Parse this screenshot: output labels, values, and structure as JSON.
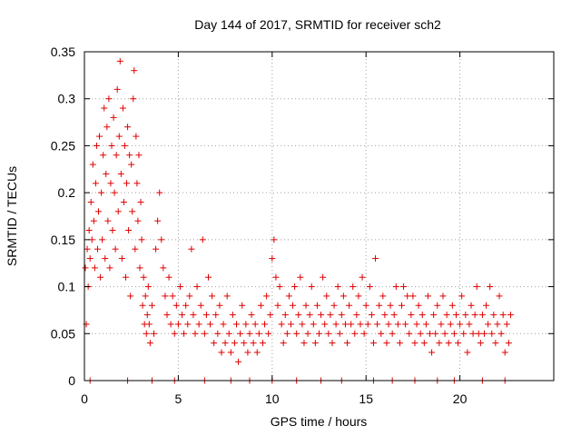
{
  "chart_data": {
    "type": "scatter",
    "title": "Day 144 of 2017, SRMTID for receiver sch2",
    "xlabel": "GPS time / hours",
    "ylabel": "SRMTID / TECUs",
    "xlim": [
      0,
      25
    ],
    "ylim": [
      0,
      0.35
    ],
    "xticks": [
      0,
      5,
      10,
      15,
      20
    ],
    "xtick_labels": [
      "0",
      "5",
      "10",
      "15",
      "20"
    ],
    "yticks": [
      0,
      0.05,
      0.1,
      0.15,
      0.2,
      0.25,
      0.3,
      0.35
    ],
    "ytick_labels": [
      "0",
      "0.05",
      "0.1",
      "0.15",
      "0.2",
      "0.25",
      "0.3",
      "0.35"
    ],
    "grid": true,
    "marker": "+",
    "color": "#e00000",
    "series": [
      {
        "name": "SRMTID",
        "points": [
          [
            0.05,
            0.12
          ],
          [
            0.1,
            0.06
          ],
          [
            0.15,
            0.14
          ],
          [
            0.2,
            0.1
          ],
          [
            0.25,
            0.16
          ],
          [
            0.3,
            0.13
          ],
          [
            0.35,
            0.19
          ],
          [
            0.4,
            0.15
          ],
          [
            0.45,
            0.23
          ],
          [
            0.5,
            0.17
          ],
          [
            0.55,
            0.12
          ],
          [
            0.6,
            0.21
          ],
          [
            0.65,
            0.25
          ],
          [
            0.7,
            0.14
          ],
          [
            0.75,
            0.18
          ],
          [
            0.8,
            0.26
          ],
          [
            0.85,
            0.11
          ],
          [
            0.9,
            0.2
          ],
          [
            0.95,
            0.15
          ],
          [
            1.0,
            0.24
          ],
          [
            1.05,
            0.29
          ],
          [
            1.1,
            0.13
          ],
          [
            1.15,
            0.22
          ],
          [
            1.2,
            0.27
          ],
          [
            1.25,
            0.17
          ],
          [
            1.3,
            0.3
          ],
          [
            1.35,
            0.12
          ],
          [
            1.4,
            0.21
          ],
          [
            1.45,
            0.25
          ],
          [
            1.5,
            0.16
          ],
          [
            1.55,
            0.28
          ],
          [
            1.6,
            0.2
          ],
          [
            1.65,
            0.14
          ],
          [
            1.7,
            0.24
          ],
          [
            1.75,
            0.31
          ],
          [
            1.8,
            0.18
          ],
          [
            1.85,
            0.26
          ],
          [
            1.9,
            0.34
          ],
          [
            1.95,
            0.22
          ],
          [
            2.0,
            0.13
          ],
          [
            2.05,
            0.29
          ],
          [
            2.1,
            0.19
          ],
          [
            2.15,
            0.25
          ],
          [
            2.2,
            0.11
          ],
          [
            2.25,
            0.21
          ],
          [
            2.3,
            0.27
          ],
          [
            2.35,
            0.16
          ],
          [
            2.4,
            0.24
          ],
          [
            2.45,
            0.09
          ],
          [
            2.5,
            0.23
          ],
          [
            2.55,
            0.18
          ],
          [
            2.6,
            0.3
          ],
          [
            2.65,
            0.33
          ],
          [
            2.7,
            0.14
          ],
          [
            2.75,
            0.26
          ],
          [
            2.8,
            0.21
          ],
          [
            2.85,
            0.17
          ],
          [
            2.9,
            0.24
          ],
          [
            2.95,
            0.12
          ],
          [
            3.0,
            0.19
          ],
          [
            3.05,
            0.15
          ],
          [
            3.1,
            0.08
          ],
          [
            3.15,
            0.11
          ],
          [
            3.2,
            0.06
          ],
          [
            3.25,
            0.09
          ],
          [
            3.3,
            0.05
          ],
          [
            3.35,
            0.07
          ],
          [
            3.4,
            0.1
          ],
          [
            3.45,
            0.06
          ],
          [
            3.5,
            0.04
          ],
          [
            3.6,
            0.08
          ],
          [
            3.7,
            0.05
          ],
          [
            3.8,
            0.14
          ],
          [
            3.9,
            0.17
          ],
          [
            4.0,
            0.2
          ],
          [
            4.1,
            0.15
          ],
          [
            4.2,
            0.12
          ],
          [
            4.3,
            0.09
          ],
          [
            4.4,
            0.07
          ],
          [
            4.5,
            0.11
          ],
          [
            4.6,
            0.06
          ],
          [
            4.7,
            0.09
          ],
          [
            4.8,
            0.05
          ],
          [
            4.9,
            0.08
          ],
          [
            5.0,
            0.06
          ],
          [
            5.1,
            0.1
          ],
          [
            5.2,
            0.07
          ],
          [
            5.3,
            0.05
          ],
          [
            5.4,
            0.08
          ],
          [
            5.5,
            0.06
          ],
          [
            5.6,
            0.09
          ],
          [
            5.7,
            0.14
          ],
          [
            5.8,
            0.07
          ],
          [
            5.9,
            0.05
          ],
          [
            6.0,
            0.1
          ],
          [
            6.1,
            0.06
          ],
          [
            6.2,
            0.08
          ],
          [
            6.3,
            0.15
          ],
          [
            6.4,
            0.05
          ],
          [
            6.5,
            0.07
          ],
          [
            6.6,
            0.11
          ],
          [
            6.7,
            0.06
          ],
          [
            6.8,
            0.09
          ],
          [
            6.9,
            0.04
          ],
          [
            7.0,
            0.07
          ],
          [
            7.1,
            0.05
          ],
          [
            7.2,
            0.08
          ],
          [
            7.3,
            0.03
          ],
          [
            7.4,
            0.06
          ],
          [
            7.5,
            0.04
          ],
          [
            7.6,
            0.09
          ],
          [
            7.7,
            0.05
          ],
          [
            7.8,
            0.03
          ],
          [
            7.9,
            0.07
          ],
          [
            8.0,
            0.04
          ],
          [
            8.1,
            0.06
          ],
          [
            8.2,
            0.02
          ],
          [
            8.3,
            0.05
          ],
          [
            8.4,
            0.08
          ],
          [
            8.5,
            0.04
          ],
          [
            8.6,
            0.06
          ],
          [
            8.7,
            0.03
          ],
          [
            8.8,
            0.05
          ],
          [
            8.9,
            0.07
          ],
          [
            9.0,
            0.04
          ],
          [
            9.1,
            0.06
          ],
          [
            9.2,
            0.03
          ],
          [
            9.3,
            0.05
          ],
          [
            9.4,
            0.08
          ],
          [
            9.5,
            0.04
          ],
          [
            9.6,
            0.06
          ],
          [
            9.7,
            0.09
          ],
          [
            9.8,
            0.05
          ],
          [
            9.9,
            0.07
          ],
          [
            10.0,
            0.13
          ],
          [
            10.1,
            0.15
          ],
          [
            10.2,
            0.11
          ],
          [
            10.3,
            0.08
          ],
          [
            10.4,
            0.1
          ],
          [
            10.5,
            0.06
          ],
          [
            10.6,
            0.04
          ],
          [
            10.7,
            0.07
          ],
          [
            10.8,
            0.05
          ],
          [
            10.9,
            0.09
          ],
          [
            11.0,
            0.06
          ],
          [
            11.1,
            0.08
          ],
          [
            11.2,
            0.1
          ],
          [
            11.3,
            0.05
          ],
          [
            11.4,
            0.07
          ],
          [
            11.5,
            0.11
          ],
          [
            11.6,
            0.06
          ],
          [
            11.7,
            0.04
          ],
          [
            11.8,
            0.08
          ],
          [
            11.9,
            0.05
          ],
          [
            12.0,
            0.07
          ],
          [
            12.1,
            0.1
          ],
          [
            12.2,
            0.06
          ],
          [
            12.3,
            0.04
          ],
          [
            12.4,
            0.08
          ],
          [
            12.5,
            0.05
          ],
          [
            12.6,
            0.07
          ],
          [
            12.7,
            0.11
          ],
          [
            12.8,
            0.06
          ],
          [
            12.9,
            0.09
          ],
          [
            13.0,
            0.05
          ],
          [
            13.1,
            0.07
          ],
          [
            13.2,
            0.04
          ],
          [
            13.3,
            0.08
          ],
          [
            13.4,
            0.06
          ],
          [
            13.5,
            0.1
          ],
          [
            13.6,
            0.05
          ],
          [
            13.7,
            0.07
          ],
          [
            13.8,
            0.09
          ],
          [
            13.9,
            0.06
          ],
          [
            14.0,
            0.04
          ],
          [
            14.1,
            0.08
          ],
          [
            14.2,
            0.06
          ],
          [
            14.3,
            0.1
          ],
          [
            14.4,
            0.05
          ],
          [
            14.5,
            0.07
          ],
          [
            14.6,
            0.09
          ],
          [
            14.7,
            0.06
          ],
          [
            14.8,
            0.11
          ],
          [
            14.9,
            0.05
          ],
          [
            15.0,
            0.08
          ],
          [
            15.1,
            0.06
          ],
          [
            15.2,
            0.1
          ],
          [
            15.3,
            0.07
          ],
          [
            15.4,
            0.04
          ],
          [
            15.5,
            0.13
          ],
          [
            15.6,
            0.06
          ],
          [
            15.7,
            0.08
          ],
          [
            15.8,
            0.05
          ],
          [
            15.9,
            0.09
          ],
          [
            16.0,
            0.07
          ],
          [
            16.1,
            0.04
          ],
          [
            16.2,
            0.06
          ],
          [
            16.3,
            0.08
          ],
          [
            16.4,
            0.05
          ],
          [
            16.5,
            0.07
          ],
          [
            16.6,
            0.1
          ],
          [
            16.7,
            0.06
          ],
          [
            16.8,
            0.04
          ],
          [
            16.9,
            0.08
          ],
          [
            17.0,
            0.1
          ],
          [
            17.1,
            0.06
          ],
          [
            17.2,
            0.09
          ],
          [
            17.3,
            0.05
          ],
          [
            17.4,
            0.07
          ],
          [
            17.5,
            0.09
          ],
          [
            17.6,
            0.04
          ],
          [
            17.7,
            0.06
          ],
          [
            17.8,
            0.08
          ],
          [
            17.9,
            0.05
          ],
          [
            18.0,
            0.07
          ],
          [
            18.1,
            0.04
          ],
          [
            18.2,
            0.06
          ],
          [
            18.3,
            0.09
          ],
          [
            18.4,
            0.05
          ],
          [
            18.5,
            0.03
          ],
          [
            18.6,
            0.07
          ],
          [
            18.7,
            0.05
          ],
          [
            18.8,
            0.08
          ],
          [
            18.9,
            0.04
          ],
          [
            19.0,
            0.06
          ],
          [
            19.1,
            0.09
          ],
          [
            19.2,
            0.05
          ],
          [
            19.3,
            0.07
          ],
          [
            19.4,
            0.04
          ],
          [
            19.5,
            0.06
          ],
          [
            19.6,
            0.08
          ],
          [
            19.7,
            0.05
          ],
          [
            19.8,
            0.07
          ],
          [
            19.9,
            0.04
          ],
          [
            20.0,
            0.06
          ],
          [
            20.1,
            0.09
          ],
          [
            20.2,
            0.05
          ],
          [
            20.3,
            0.07
          ],
          [
            20.4,
            0.03
          ],
          [
            20.5,
            0.06
          ],
          [
            20.6,
            0.08
          ],
          [
            20.7,
            0.05
          ],
          [
            20.8,
            0.07
          ],
          [
            20.9,
            0.1
          ],
          [
            21.0,
            0.05
          ],
          [
            21.1,
            0.04
          ],
          [
            21.2,
            0.07
          ],
          [
            21.3,
            0.05
          ],
          [
            21.4,
            0.08
          ],
          [
            21.5,
            0.06
          ],
          [
            21.6,
            0.1
          ],
          [
            21.7,
            0.05
          ],
          [
            21.8,
            0.07
          ],
          [
            21.9,
            0.04
          ],
          [
            22.0,
            0.06
          ],
          [
            22.1,
            0.09
          ],
          [
            22.2,
            0.05
          ],
          [
            22.3,
            0.07
          ],
          [
            22.4,
            0.03
          ],
          [
            22.5,
            0.06
          ],
          [
            22.6,
            0.04
          ],
          [
            22.7,
            0.07
          ],
          [
            0.3,
            0
          ],
          [
            2.3,
            0
          ],
          [
            3.6,
            0
          ],
          [
            4.8,
            0
          ],
          [
            6.4,
            0
          ],
          [
            7.8,
            0
          ],
          [
            8.8,
            0
          ],
          [
            10.0,
            0
          ],
          [
            11.3,
            0
          ],
          [
            12.6,
            0
          ],
          [
            13.7,
            0
          ],
          [
            15.4,
            0
          ],
          [
            16.4,
            0
          ],
          [
            17.6,
            0
          ],
          [
            18.8,
            0
          ],
          [
            19.7,
            0
          ],
          [
            21.2,
            0
          ],
          [
            22.4,
            0
          ]
        ]
      }
    ]
  }
}
